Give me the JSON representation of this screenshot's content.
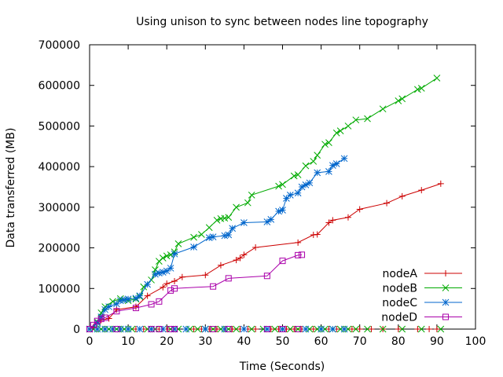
{
  "chart_data": {
    "type": "line",
    "title": "Using unison to sync between nodes line topography",
    "xlabel": "Time (Seconds)",
    "ylabel": "Data transferred (MB)",
    "xlim": [
      0,
      100
    ],
    "ylim": [
      0,
      700000
    ],
    "xticks": [
      0,
      10,
      20,
      30,
      40,
      50,
      60,
      70,
      80,
      90,
      100
    ],
    "yticks": [
      0,
      100000,
      200000,
      300000,
      400000,
      500000,
      600000,
      700000
    ],
    "grid": false,
    "legend_position": "bottom-right",
    "series": [
      {
        "name": "nodeA",
        "color": "#cc0000",
        "marker": "plus",
        "points": [
          [
            0,
            0
          ],
          [
            1,
            5000
          ],
          [
            2,
            15000
          ],
          [
            3,
            22000
          ],
          [
            5,
            26000
          ],
          [
            7,
            48000
          ],
          [
            12,
            55000
          ],
          [
            15,
            82000
          ],
          [
            19,
            103000
          ],
          [
            20,
            112000
          ],
          [
            22,
            118000
          ],
          [
            24,
            128000
          ],
          [
            30,
            133000
          ],
          [
            34,
            157000
          ],
          [
            38,
            170000
          ],
          [
            39,
            175000
          ],
          [
            40,
            183000
          ],
          [
            43,
            201000
          ],
          [
            54,
            213000
          ],
          [
            58,
            232000
          ],
          [
            59,
            233000
          ],
          [
            62,
            262000
          ],
          [
            63,
            268000
          ],
          [
            67,
            275000
          ],
          [
            70,
            295000
          ],
          [
            77,
            310000
          ],
          [
            81,
            327000
          ],
          [
            86,
            342000
          ],
          [
            91,
            358000
          ]
        ],
        "zero_x": [
          0,
          2,
          4,
          6,
          8,
          10,
          12,
          14,
          16,
          18,
          20,
          22,
          27,
          29,
          31,
          33,
          35,
          37,
          39,
          41,
          43,
          47,
          49,
          51,
          53,
          55,
          58,
          60,
          62,
          64,
          66,
          68,
          70,
          73,
          76,
          80,
          85,
          88,
          90
        ]
      },
      {
        "name": "nodeB",
        "color": "#00aa00",
        "marker": "cross",
        "points": [
          [
            0,
            0
          ],
          [
            2,
            18000
          ],
          [
            3,
            40000
          ],
          [
            4,
            55000
          ],
          [
            6,
            68000
          ],
          [
            8,
            75000
          ],
          [
            10,
            70000
          ],
          [
            12,
            74000
          ],
          [
            13,
            80000
          ],
          [
            14,
            104000
          ],
          [
            16,
            121000
          ],
          [
            17,
            146000
          ],
          [
            18,
            167000
          ],
          [
            19,
            175000
          ],
          [
            20,
            180000
          ],
          [
            21,
            183000
          ],
          [
            22,
            190000
          ],
          [
            23,
            210000
          ],
          [
            27,
            226000
          ],
          [
            29,
            233000
          ],
          [
            31,
            250000
          ],
          [
            33,
            268000
          ],
          [
            34,
            272000
          ],
          [
            35,
            273000
          ],
          [
            36,
            275000
          ],
          [
            38,
            300000
          ],
          [
            41,
            311000
          ],
          [
            42,
            330000
          ],
          [
            49,
            352000
          ],
          [
            50,
            356000
          ],
          [
            53,
            377000
          ],
          [
            54,
            380000
          ],
          [
            56,
            402000
          ],
          [
            58,
            413000
          ],
          [
            59,
            428000
          ],
          [
            61,
            455000
          ],
          [
            62,
            459000
          ],
          [
            64,
            483000
          ],
          [
            65,
            488000
          ],
          [
            67,
            500000
          ],
          [
            69,
            515000
          ],
          [
            72,
            518000
          ],
          [
            76,
            542000
          ],
          [
            80,
            562000
          ],
          [
            81,
            567000
          ],
          [
            85,
            590000
          ],
          [
            86,
            593000
          ],
          [
            90,
            618000
          ]
        ],
        "zero_x": [
          1,
          3,
          5,
          7,
          9,
          11,
          15,
          17,
          21,
          23,
          26,
          28,
          30,
          32,
          34,
          36,
          38,
          42,
          45,
          48,
          50,
          52,
          54,
          57,
          59,
          61,
          63,
          65,
          67,
          69,
          72,
          76,
          81,
          86,
          91
        ]
      },
      {
        "name": "nodeC",
        "color": "#0066cc",
        "marker": "star",
        "points": [
          [
            0,
            0
          ],
          [
            2,
            15000
          ],
          [
            3,
            30000
          ],
          [
            4,
            48000
          ],
          [
            5,
            55000
          ],
          [
            7,
            62000
          ],
          [
            8,
            70000
          ],
          [
            9,
            72000
          ],
          [
            10,
            74000
          ],
          [
            12,
            76000
          ],
          [
            13,
            82000
          ],
          [
            15,
            110000
          ],
          [
            17,
            135000
          ],
          [
            18,
            138000
          ],
          [
            19,
            140000
          ],
          [
            20,
            143000
          ],
          [
            21,
            150000
          ],
          [
            22,
            185000
          ],
          [
            27,
            202000
          ],
          [
            31,
            225000
          ],
          [
            32,
            227000
          ],
          [
            35,
            230000
          ],
          [
            36,
            232000
          ],
          [
            37,
            248000
          ],
          [
            40,
            262000
          ],
          [
            46,
            264000
          ],
          [
            47,
            270000
          ],
          [
            49,
            290000
          ],
          [
            50,
            293000
          ],
          [
            51,
            322000
          ],
          [
            52,
            330000
          ],
          [
            54,
            335000
          ],
          [
            55,
            350000
          ],
          [
            56,
            355000
          ],
          [
            57,
            360000
          ],
          [
            59,
            385000
          ],
          [
            62,
            388000
          ],
          [
            63,
            403000
          ],
          [
            64,
            407000
          ],
          [
            66,
            420000
          ]
        ],
        "zero_x": [
          2,
          4,
          6,
          8,
          10,
          13,
          16,
          19,
          22,
          25,
          30,
          35,
          40,
          46,
          50,
          56,
          60,
          63,
          66
        ]
      },
      {
        "name": "nodeD",
        "color": "#aa00aa",
        "marker": "square",
        "points": [
          [
            0,
            0
          ],
          [
            1,
            10000
          ],
          [
            2,
            20000
          ],
          [
            3,
            25000
          ],
          [
            4,
            28000
          ],
          [
            7,
            44000
          ],
          [
            12,
            52000
          ],
          [
            16,
            61000
          ],
          [
            18,
            68000
          ],
          [
            21,
            95000
          ],
          [
            22,
            100000
          ],
          [
            32,
            105000
          ],
          [
            36,
            125000
          ],
          [
            46,
            131000
          ],
          [
            50,
            168000
          ],
          [
            54,
            182000
          ],
          [
            55,
            183000
          ]
        ],
        "zero_x": [
          0,
          7,
          16,
          18,
          21,
          22,
          32,
          36,
          46,
          50,
          54
        ]
      }
    ]
  }
}
